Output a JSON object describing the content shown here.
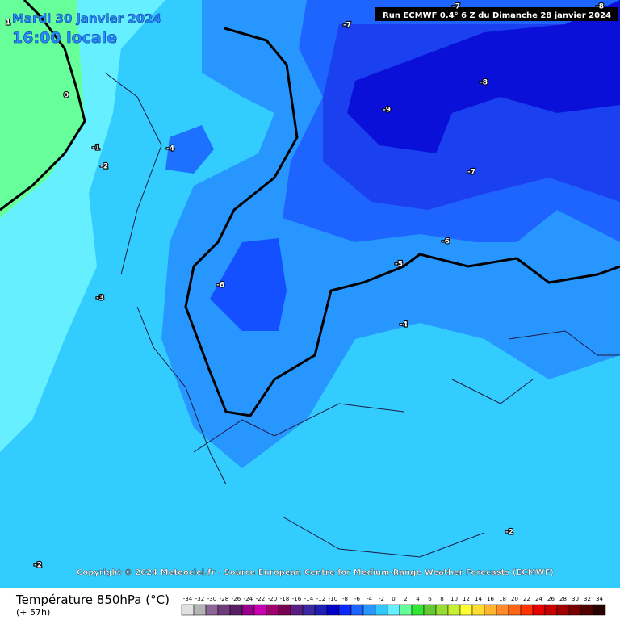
{
  "header": {
    "date": "Mardi 30 janvier 2024",
    "time": "16:00 locale",
    "run": "Run ECMWF 0.4° 6 Z du Dimanche 28 janvier 2024"
  },
  "copyright": "Copyright © 2024 Meteociel.fr - Source European Centre for Medium-Range Weather Forecasts (ECMWF)",
  "contour_labels": [
    "-7",
    "-8",
    "-7",
    "-8",
    "-9",
    "0",
    "-1",
    "-4",
    "-2",
    "-7",
    "-6",
    "-5",
    "-6",
    "-3",
    "-4",
    "-2",
    "-2",
    "1"
  ],
  "footer": {
    "title": "Température 850hPa (°C)",
    "subtitle": "(+ 57h)",
    "scale": {
      "values": [
        -34,
        -32,
        -30,
        -28,
        -26,
        -24,
        -22,
        -20,
        -18,
        -16,
        -14,
        -12,
        -10,
        -8,
        -6,
        -4,
        -2,
        0,
        2,
        4,
        6,
        8,
        10,
        12,
        14,
        16,
        18,
        20,
        22,
        24,
        26,
        28,
        30,
        32,
        34
      ],
      "colors": [
        "#e0e0e0",
        "#b4b4b4",
        "#8c6496",
        "#6e3c78",
        "#5a1e64",
        "#96008c",
        "#c800b4",
        "#a0006e",
        "#780050",
        "#5a1e82",
        "#3c28a0",
        "#1e1eb4",
        "#0000c8",
        "#0a28ff",
        "#1e64ff",
        "#2896ff",
        "#32c8ff",
        "#64f0ff",
        "#64ff96",
        "#32e632",
        "#64c832",
        "#96dc32",
        "#c8f032",
        "#ffff32",
        "#ffdc32",
        "#ffb432",
        "#ff8c28",
        "#ff6414",
        "#ff3200",
        "#e60000",
        "#c80000",
        "#a00000",
        "#780000",
        "#500000",
        "#280000"
      ]
    }
  }
}
